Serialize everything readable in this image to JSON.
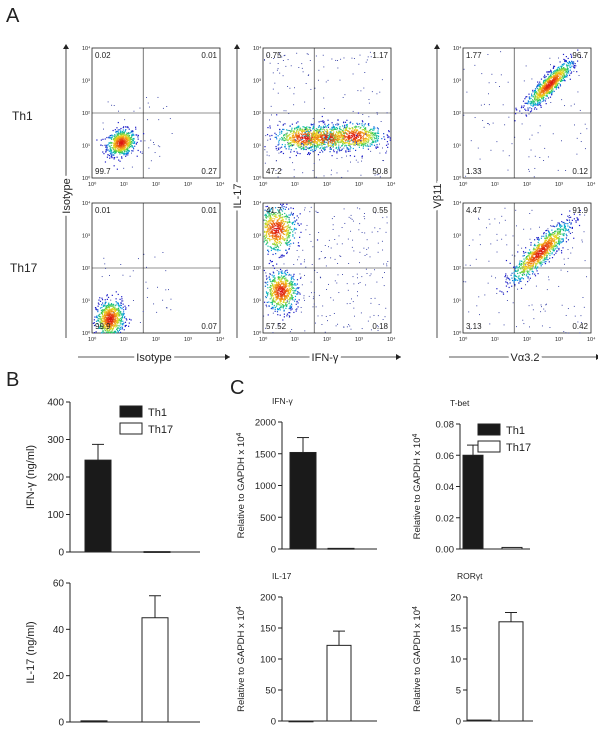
{
  "figure": {
    "panel_a_letter": "A",
    "panel_b_letter": "B",
    "panel_c_letter": "C"
  },
  "chart_data": [
    {
      "type": "scatter",
      "panel": "A",
      "row_labels": [
        "Th1",
        "Th17"
      ],
      "tick_labels": [
        "10⁰",
        "10¹",
        "10²",
        "10³",
        "10⁴"
      ],
      "scale": "log",
      "xlim": [
        1,
        10000
      ],
      "ylim": [
        1,
        10000
      ],
      "columns": [
        {
          "xlabel": "Isotype",
          "ylabel": "Isotype",
          "plots": [
            {
              "row": "Th1",
              "quadrants": {
                "ul": "0.02",
                "ur": "0.01",
                "ll": "99.7",
                "lr": "0.27"
              },
              "populations": [
                {
                  "cx": 0.9,
                  "cy": 1.1,
                  "sx": 0.22,
                  "sy": 0.2,
                  "n": 700,
                  "rho": 0.2
                }
              ],
              "noise": 40
            },
            {
              "row": "Th17",
              "quadrants": {
                "ul": "0.01",
                "ur": "0.01",
                "ll": "99.9",
                "lr": "0.07"
              },
              "populations": [
                {
                  "cx": 0.55,
                  "cy": 0.45,
                  "sx": 0.22,
                  "sy": 0.28,
                  "n": 700,
                  "rho": 0.1
                }
              ],
              "noise": 40
            }
          ]
        },
        {
          "xlabel": "IFN-γ",
          "ylabel": "IL-17",
          "plots": [
            {
              "row": "Th1",
              "quadrants": {
                "ul": "0.75",
                "ur": "1.17",
                "ll": "47.2",
                "lr": "50.8"
              },
              "populations": [
                {
                  "cx": 1.3,
                  "cy": 1.25,
                  "sx": 0.45,
                  "sy": 0.2,
                  "n": 600,
                  "rho": 0
                },
                {
                  "cx": 2.8,
                  "cy": 1.3,
                  "sx": 0.45,
                  "sy": 0.2,
                  "n": 600,
                  "rho": 0
                },
                {
                  "cx": 2.0,
                  "cy": 1.25,
                  "sx": 0.4,
                  "sy": 0.2,
                  "n": 300,
                  "rho": 0
                }
              ],
              "noise": 180
            },
            {
              "row": "Th17",
              "quadrants": {
                "ul": "41.7",
                "ur": "0.55",
                "ll": "57.52",
                "lr": "0.18"
              },
              "populations": [
                {
                  "cx": 0.4,
                  "cy": 3.2,
                  "sx": 0.3,
                  "sy": 0.35,
                  "n": 600,
                  "rho": 0
                },
                {
                  "cx": 0.55,
                  "cy": 1.3,
                  "sx": 0.25,
                  "sy": 0.3,
                  "n": 600,
                  "rho": 0
                }
              ],
              "noise": 250
            }
          ]
        },
        {
          "xlabel": "Vα3.2",
          "ylabel": "Vβ11",
          "plots": [
            {
              "row": "Th1",
              "quadrants": {
                "ul": "1.77",
                "ur": "96.7",
                "ll": "1.33",
                "lr": "0.12"
              },
              "populations": [
                {
                  "cx": 2.7,
                  "cy": 2.9,
                  "sx": 0.35,
                  "sy": 0.35,
                  "n": 900,
                  "rho": 0.88
                }
              ],
              "noise": 90
            },
            {
              "row": "Th17",
              "quadrants": {
                "ul": "4.47",
                "ur": "91.9",
                "ll": "3.13",
                "lr": "0.42"
              },
              "populations": [
                {
                  "cx": 2.4,
                  "cy": 2.5,
                  "sx": 0.45,
                  "sy": 0.45,
                  "n": 900,
                  "rho": 0.88
                }
              ],
              "noise": 130
            }
          ]
        }
      ]
    },
    {
      "type": "bar",
      "panel": "B",
      "ylabel": "IFN-γ (ng/ml)",
      "ylim": [
        0,
        400
      ],
      "yticks": [
        "0",
        "100",
        "200",
        "300",
        "400"
      ],
      "categories": [
        "Th1",
        "Th17"
      ],
      "values": [
        245,
        1
      ],
      "errors": [
        42,
        0
      ],
      "colors": [
        "#1a1a1a",
        "#ffffff"
      ]
    },
    {
      "type": "bar",
      "panel": "B",
      "ylabel": "IL-17  (ng/ml)",
      "ylim": [
        0,
        60
      ],
      "yticks": [
        "0",
        "20",
        "40",
        "60"
      ],
      "categories": [
        "Th1",
        "Th17"
      ],
      "values": [
        0.5,
        45
      ],
      "errors": [
        0,
        9.5
      ],
      "colors": [
        "#1a1a1a",
        "#ffffff"
      ]
    },
    {
      "type": "bar",
      "panel": "C",
      "title": "IFN-γ",
      "ylabel": "Relative to GAPDH x 10",
      "ylabel_superscript": "4",
      "ylim": [
        0,
        2000
      ],
      "yticks": [
        "0",
        "500",
        "1000",
        "1500",
        "2000"
      ],
      "categories": [
        "Th1",
        "Th17"
      ],
      "values": [
        1520,
        10
      ],
      "errors": [
        235,
        0
      ],
      "colors": [
        "#1a1a1a",
        "#ffffff"
      ]
    },
    {
      "type": "bar",
      "panel": "C",
      "title": "T-bet",
      "ylabel": "Relative to GAPDH x 10",
      "ylabel_superscript": "4",
      "ylim": [
        0,
        0.08
      ],
      "yticks": [
        "0.00",
        "0.02",
        "0.04",
        "0.06",
        "0.08"
      ],
      "categories": [
        "Th1",
        "Th17"
      ],
      "values": [
        0.06,
        0.001
      ],
      "errors": [
        0.0065,
        0
      ],
      "colors": [
        "#1a1a1a",
        "#ffffff"
      ]
    },
    {
      "type": "bar",
      "panel": "C",
      "title": "IL-17",
      "ylabel": "Relative to GAPDH x 10",
      "ylabel_superscript": "4",
      "ylim": [
        0,
        200
      ],
      "yticks": [
        "0",
        "50",
        "100",
        "150",
        "200"
      ],
      "categories": [
        "Th1",
        "Th17"
      ],
      "values": [
        0,
        122
      ],
      "errors": [
        0,
        23
      ],
      "colors": [
        "#1a1a1a",
        "#ffffff"
      ]
    },
    {
      "type": "bar",
      "panel": "C",
      "title": "RORγt",
      "ylabel": "Relative to GAPDH x 10",
      "ylabel_superscript": "4",
      "ylim": [
        0,
        20
      ],
      "yticks": [
        "0",
        "5",
        "10",
        "15",
        "20"
      ],
      "categories": [
        "Th1",
        "Th17"
      ],
      "values": [
        0.15,
        16
      ],
      "errors": [
        0,
        1.5
      ],
      "colors": [
        "#1a1a1a",
        "#ffffff"
      ]
    }
  ],
  "legend": {
    "B": [
      {
        "label": "Th1",
        "color": "#1a1a1a"
      },
      {
        "label": "Th17",
        "color": "#ffffff"
      }
    ],
    "C": [
      {
        "label": "Th1",
        "color": "#1a1a1a"
      },
      {
        "label": "Th17",
        "color": "#ffffff"
      }
    ]
  }
}
